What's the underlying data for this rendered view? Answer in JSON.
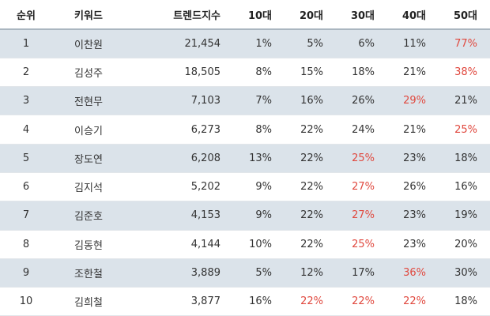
{
  "table": {
    "headers": {
      "rank": "순위",
      "keyword": "키워드",
      "trend_index": "트렌드지수",
      "age10": "10대",
      "age20": "20대",
      "age30": "30대",
      "age40": "40대",
      "age50": "50대"
    },
    "highlight_color": "#e0483e",
    "shade_color": "#dbe3ea",
    "rows": [
      {
        "rank": "1",
        "keyword": "이찬원",
        "trend_index": "21,454",
        "age10": "1%",
        "age20": "5%",
        "age30": "6%",
        "age40": "11%",
        "age50": "77%",
        "highlight": "age50"
      },
      {
        "rank": "2",
        "keyword": "김성주",
        "trend_index": "18,505",
        "age10": "8%",
        "age20": "15%",
        "age30": "18%",
        "age40": "21%",
        "age50": "38%",
        "highlight": "age50"
      },
      {
        "rank": "3",
        "keyword": "전현무",
        "trend_index": "7,103",
        "age10": "7%",
        "age20": "16%",
        "age30": "26%",
        "age40": "29%",
        "age50": "21%",
        "highlight": "age40"
      },
      {
        "rank": "4",
        "keyword": "이승기",
        "trend_index": "6,273",
        "age10": "8%",
        "age20": "22%",
        "age30": "24%",
        "age40": "21%",
        "age50": "25%",
        "highlight": "age50"
      },
      {
        "rank": "5",
        "keyword": "장도연",
        "trend_index": "6,208",
        "age10": "13%",
        "age20": "22%",
        "age30": "25%",
        "age40": "23%",
        "age50": "18%",
        "highlight": "age30"
      },
      {
        "rank": "6",
        "keyword": "김지석",
        "trend_index": "5,202",
        "age10": "9%",
        "age20": "22%",
        "age30": "27%",
        "age40": "26%",
        "age50": "16%",
        "highlight": "age30"
      },
      {
        "rank": "7",
        "keyword": "김준호",
        "trend_index": "4,153",
        "age10": "9%",
        "age20": "22%",
        "age30": "27%",
        "age40": "23%",
        "age50": "19%",
        "highlight": "age30"
      },
      {
        "rank": "8",
        "keyword": "김동현",
        "trend_index": "4,144",
        "age10": "10%",
        "age20": "22%",
        "age30": "25%",
        "age40": "23%",
        "age50": "20%",
        "highlight": "age30"
      },
      {
        "rank": "9",
        "keyword": "조한철",
        "trend_index": "3,889",
        "age10": "5%",
        "age20": "12%",
        "age30": "17%",
        "age40": "36%",
        "age50": "30%",
        "highlight": "age40"
      },
      {
        "rank": "10",
        "keyword": "김희철",
        "trend_index": "3,877",
        "age10": "16%",
        "age20": "22%",
        "age30": "22%",
        "age40": "22%",
        "age50": "18%",
        "highlight": "age20,age30,age40"
      }
    ]
  }
}
